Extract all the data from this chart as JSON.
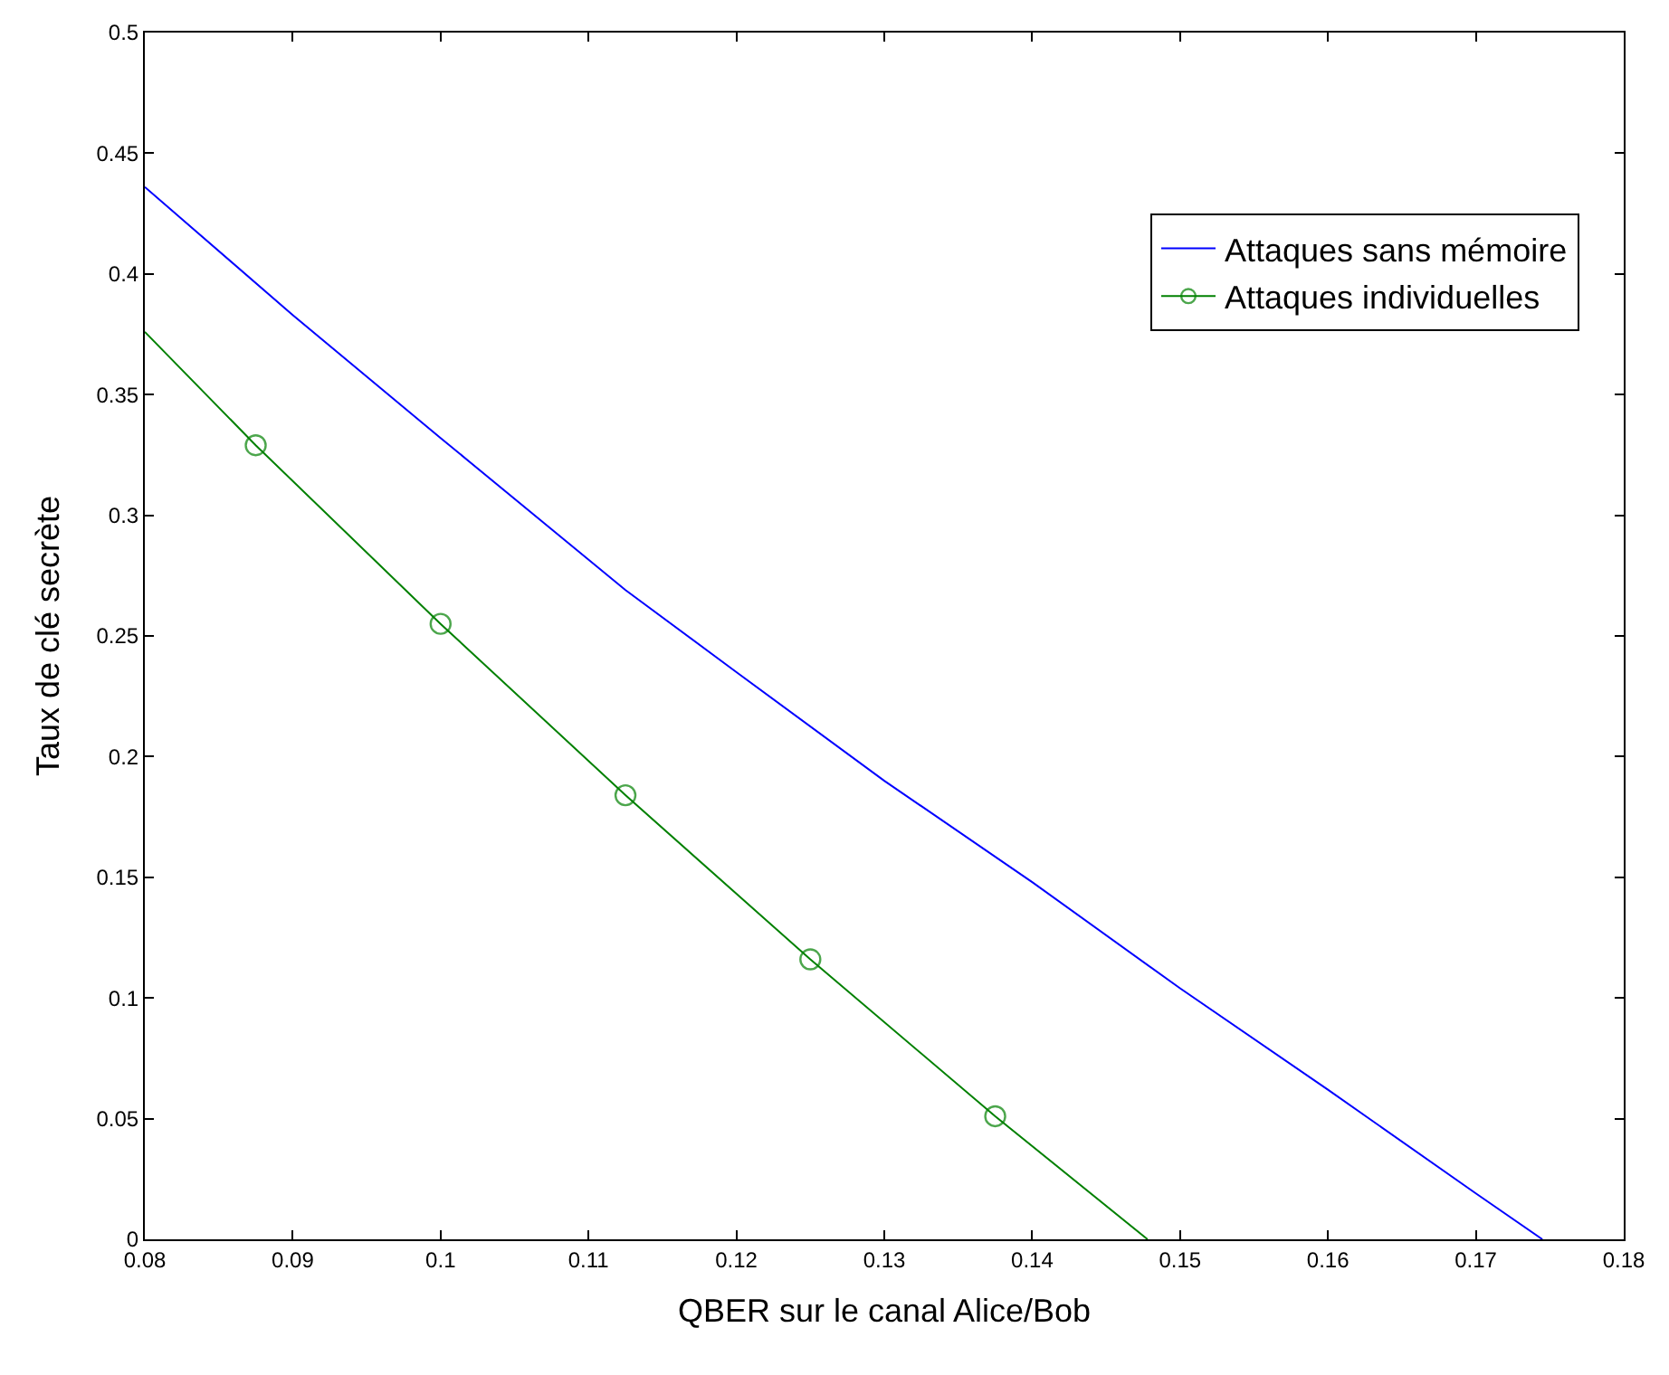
{
  "chart_data": {
    "type": "line",
    "xlabel": "QBER sur le canal Alice/Bob",
    "ylabel": "Taux de clé secrète",
    "xlim": [
      0.08,
      0.18
    ],
    "xticks": [
      0.08,
      0.09,
      0.1,
      0.11,
      0.12,
      0.13,
      0.14,
      0.15,
      0.16,
      0.17,
      0.18
    ],
    "ylim": [
      0,
      0.5
    ],
    "yticks": [
      0,
      0.05,
      0.1,
      0.15,
      0.2,
      0.25,
      0.3,
      0.35,
      0.4,
      0.45,
      0.5
    ],
    "legend": "top right",
    "series": [
      {
        "name": "Attaques sans mémoire",
        "color": "#0000ff",
        "marker": "none",
        "x": [
          0.08,
          0.09,
          0.1,
          0.1125,
          0.12,
          0.13,
          0.14,
          0.15,
          0.16,
          0.17,
          0.1745
        ],
        "values": [
          0.436,
          0.383,
          0.332,
          0.269,
          0.235,
          0.19,
          0.148,
          0.104,
          0.062,
          0.019,
          0
        ]
      },
      {
        "name": "Attaques individuelles",
        "color": "#008000",
        "marker": "circle",
        "x": [
          0.08,
          0.0875,
          0.1,
          0.1125,
          0.125,
          0.1375,
          0.1478
        ],
        "values": [
          0.376,
          0.329,
          0.255,
          0.184,
          0.116,
          0.051,
          0
        ]
      }
    ]
  }
}
